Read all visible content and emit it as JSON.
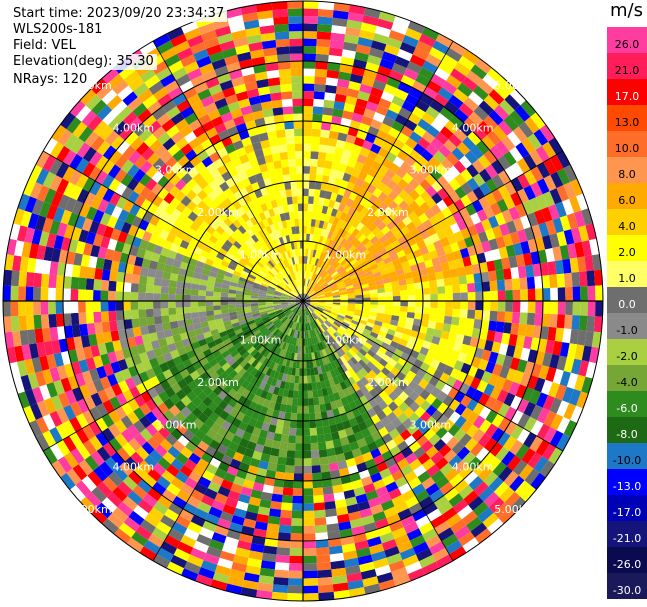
{
  "header": {
    "start_time": "Start time: 2023/09/20 23:34:37",
    "site": "WLS200s-181",
    "field": "Field: VEL",
    "elevation": "Elevation(deg): 35.30",
    "nrays": "NRays: 120"
  },
  "colorbar": {
    "unit": "m/s",
    "ticks": [
      "26.0",
      "21.0",
      "17.0",
      "13.0",
      "10.0",
      "8.0",
      "6.0",
      "4.0",
      "2.0",
      "1.0",
      "0.0",
      "-1.0",
      "-2.0",
      "-4.0",
      "-6.0",
      "-8.0",
      "-10.0",
      "-13.0",
      "-17.0",
      "-21.0",
      "-26.0",
      "-30.0"
    ],
    "colors": [
      "#ff3ca0",
      "#ff1e5a",
      "#ff0000",
      "#ff4a00",
      "#ff6e28",
      "#ff9650",
      "#ffaa00",
      "#ffd000",
      "#ffff00",
      "#ffff66",
      "#6e6e6e",
      "#8a8a8a",
      "#a8d040",
      "#76a636",
      "#2e8b1e",
      "#1e6a14",
      "#1e78c8",
      "#0000ff",
      "#0000b4",
      "#14147a",
      "#0a0a50",
      "#1a1a5a"
    ]
  },
  "map": {
    "ring_labels": [
      {
        "text": "1.00km"
      },
      {
        "text": "2.00km"
      },
      {
        "text": "3.00km"
      },
      {
        "text": "4.00km"
      },
      {
        "text": "5.00km"
      }
    ]
  }
}
